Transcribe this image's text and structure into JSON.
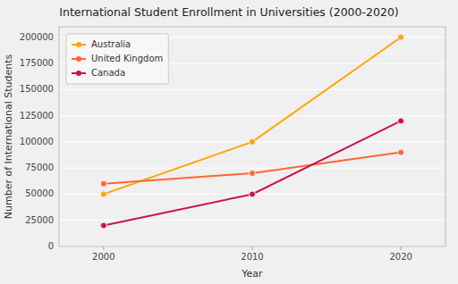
{
  "chart_data": {
    "type": "line",
    "title": "International Student Enrollment in Universities (2000-2020)",
    "xlabel": "Year",
    "ylabel": "Number of International Students",
    "x": [
      2000,
      2010,
      2020
    ],
    "series": [
      {
        "name": "Australia",
        "color": "#FFA500",
        "marker": "circle",
        "values": [
          50000,
          100000,
          200000
        ]
      },
      {
        "name": "United Kingdom",
        "color": "#FF6633",
        "marker": "circle",
        "values": [
          60000,
          70000,
          90000
        ]
      },
      {
        "name": "Canada",
        "color": "#CC1155",
        "marker": "circle",
        "values": [
          20000,
          50000,
          120000
        ]
      }
    ],
    "xlim": [
      1997,
      2023
    ],
    "xticks": [
      2000,
      2010,
      2020
    ],
    "ylim": [
      0,
      210000
    ],
    "yticks": [
      0,
      25000,
      50000,
      75000,
      100000,
      125000,
      150000,
      175000,
      200000
    ],
    "grid": true,
    "legend": "upper left"
  }
}
